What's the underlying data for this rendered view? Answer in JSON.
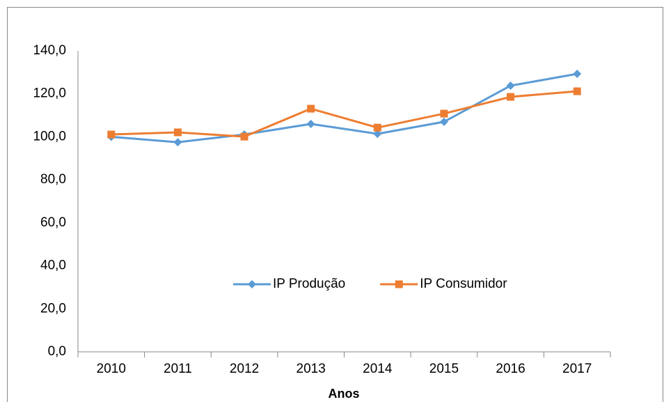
{
  "chart_data": {
    "type": "line",
    "x_label": "Anos",
    "categories": [
      "2010",
      "2011",
      "2012",
      "2013",
      "2014",
      "2015",
      "2016",
      "2017"
    ],
    "series": [
      {
        "name": "IP Produção",
        "color": "#5b9bd5",
        "marker": "diamond",
        "values": [
          100,
          97.5,
          101.1,
          106,
          101.4,
          107,
          123.8,
          129.3
        ]
      },
      {
        "name": "IP Consumidor",
        "color": "#ed7d31",
        "marker": "square",
        "values": [
          101.1,
          102.1,
          100.1,
          113.1,
          104.3,
          110.8,
          118.6,
          121.2
        ]
      }
    ],
    "ylim": [
      0,
      140
    ],
    "yticks": [
      {
        "value": 0,
        "label": "0,0"
      },
      {
        "value": 20,
        "label": "20,0"
      },
      {
        "value": 40,
        "label": "40,0"
      },
      {
        "value": 60,
        "label": "60,0"
      },
      {
        "value": 80,
        "label": "80,0"
      },
      {
        "value": 100,
        "label": "100,0"
      },
      {
        "value": 120,
        "label": "120,0"
      },
      {
        "value": 140,
        "label": "140,0"
      }
    ],
    "grid": false,
    "legend": "center"
  }
}
